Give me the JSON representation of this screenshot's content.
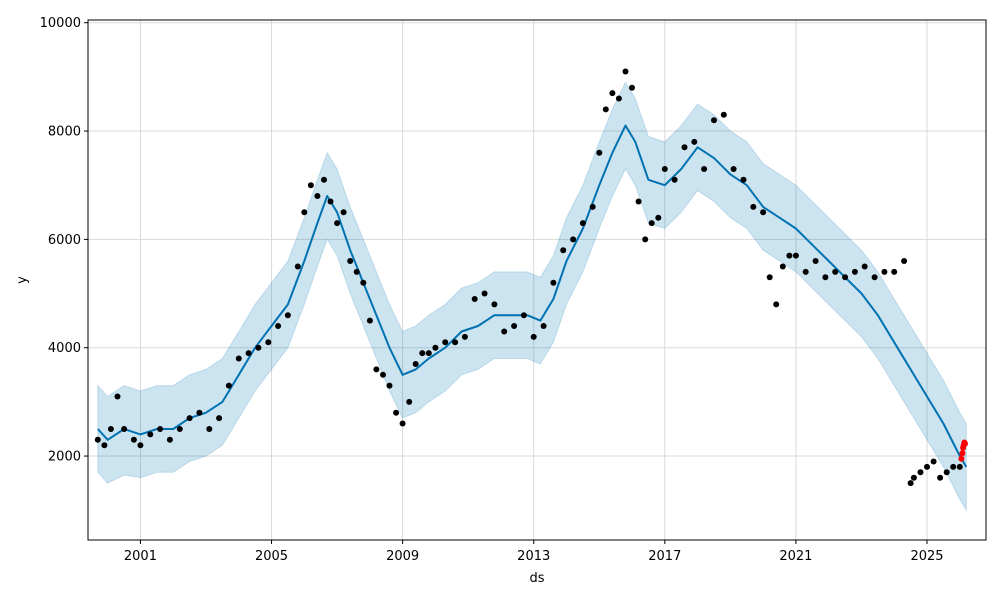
{
  "chart_data": {
    "type": "line",
    "xlabel": "ds",
    "ylabel": "y",
    "xlim": [
      1999.4,
      2026.8
    ],
    "ylim": [
      450,
      10050
    ],
    "grid": true,
    "x_ticks": [
      2001,
      2005,
      2009,
      2013,
      2017,
      2021,
      2025
    ],
    "x_tick_labels": [
      "2001",
      "2005",
      "2009",
      "2013",
      "2017",
      "2021",
      "2025"
    ],
    "y_ticks": [
      2000,
      4000,
      6000,
      8000,
      10000
    ],
    "y_tick_labels": [
      "2000",
      "4000",
      "6000",
      "8000",
      "10000"
    ],
    "colors": {
      "observed": "#000000",
      "forecast": "#0072B2",
      "interval": "#0072B2",
      "recent": "#ff0000",
      "grid": "#d9d9d9"
    },
    "series": [
      {
        "role": "observed",
        "style": "points",
        "x": [
          1999.7,
          1999.9,
          2000.1,
          2000.3,
          2000.5,
          2000.8,
          2001.0,
          2001.3,
          2001.6,
          2001.9,
          2002.2,
          2002.5,
          2002.8,
          2003.1,
          2003.4,
          2003.7,
          2004.0,
          2004.3,
          2004.6,
          2004.9,
          2005.2,
          2005.5,
          2005.8,
          2006.0,
          2006.2,
          2006.4,
          2006.6,
          2006.8,
          2007.0,
          2007.2,
          2007.4,
          2007.6,
          2007.8,
          2008.0,
          2008.2,
          2008.4,
          2008.6,
          2008.8,
          2009.0,
          2009.2,
          2009.4,
          2009.6,
          2009.8,
          2010.0,
          2010.3,
          2010.6,
          2010.9,
          2011.2,
          2011.5,
          2011.8,
          2012.1,
          2012.4,
          2012.7,
          2013.0,
          2013.3,
          2013.6,
          2013.9,
          2014.2,
          2014.5,
          2014.8,
          2015.0,
          2015.2,
          2015.4,
          2015.6,
          2015.8,
          2016.0,
          2016.2,
          2016.4,
          2016.6,
          2016.8,
          2017.0,
          2017.3,
          2017.6,
          2017.9,
          2018.2,
          2018.5,
          2018.8,
          2019.1,
          2019.4,
          2019.7,
          2020.0,
          2020.2,
          2020.4,
          2020.6,
          2020.8,
          2021.0,
          2021.3,
          2021.6,
          2021.9,
          2022.2,
          2022.5,
          2022.8,
          2023.1,
          2023.4,
          2023.7,
          2024.0,
          2024.3,
          2024.5,
          2024.6,
          2024.8,
          2025.0,
          2025.2,
          2025.4,
          2025.6,
          2025.8,
          2026.0
        ],
        "y": [
          2300,
          2200,
          2500,
          3100,
          2500,
          2300,
          2200,
          2400,
          2500,
          2300,
          2500,
          2700,
          2800,
          2500,
          2700,
          3300,
          3800,
          3900,
          4000,
          4100,
          4400,
          4600,
          5500,
          6500,
          7000,
          6800,
          7100,
          6700,
          6300,
          6500,
          5600,
          5400,
          5200,
          4500,
          3600,
          3500,
          3300,
          2800,
          2600,
          3000,
          3700,
          3900,
          3900,
          4000,
          4100,
          4100,
          4200,
          4900,
          5000,
          4800,
          4300,
          4400,
          4600,
          4200,
          4400,
          5200,
          5800,
          6000,
          6300,
          6600,
          7600,
          8400,
          8700,
          8600,
          9100,
          8800,
          6700,
          6000,
          6300,
          6400,
          7300,
          7100,
          7700,
          7800,
          7300,
          8200,
          8300,
          7300,
          7100,
          6600,
          6500,
          5300,
          4800,
          5500,
          5700,
          5700,
          5400,
          5600,
          5300,
          5400,
          5300,
          5400,
          5500,
          5300,
          5400,
          5400,
          5600,
          1500,
          1600,
          1700,
          1800,
          1900,
          1600,
          1700,
          1800,
          1800
        ]
      },
      {
        "role": "recent",
        "style": "points",
        "x": [
          2026.05,
          2026.08,
          2026.1,
          2026.12,
          2026.14,
          2026.16
        ],
        "y": [
          1950,
          2050,
          2150,
          2200,
          2250,
          2230
        ]
      },
      {
        "role": "forecast",
        "style": "line",
        "x": [
          1999.7,
          2000.0,
          2000.5,
          2001.0,
          2001.5,
          2002.0,
          2002.5,
          2003.0,
          2003.5,
          2004.0,
          2004.5,
          2005.0,
          2005.5,
          2006.0,
          2006.4,
          2006.7,
          2007.0,
          2007.4,
          2007.8,
          2008.2,
          2008.6,
          2009.0,
          2009.4,
          2009.8,
          2010.3,
          2010.8,
          2011.3,
          2011.8,
          2012.3,
          2012.8,
          2013.2,
          2013.6,
          2014.0,
          2014.5,
          2015.0,
          2015.4,
          2015.8,
          2016.1,
          2016.5,
          2017.0,
          2017.5,
          2018.0,
          2018.5,
          2019.0,
          2019.5,
          2020.0,
          2020.5,
          2021.0,
          2021.5,
          2022.0,
          2022.5,
          2023.0,
          2023.5,
          2024.0,
          2024.5,
          2025.0,
          2025.5,
          2026.0,
          2026.2
        ],
        "y": [
          2500,
          2300,
          2500,
          2400,
          2500,
          2500,
          2700,
          2800,
          3000,
          3500,
          4000,
          4400,
          4800,
          5600,
          6300,
          6800,
          6500,
          5800,
          5200,
          4600,
          4000,
          3500,
          3600,
          3800,
          4000,
          4300,
          4400,
          4600,
          4600,
          4600,
          4500,
          4900,
          5600,
          6200,
          7000,
          7600,
          8100,
          7800,
          7100,
          7000,
          7300,
          7700,
          7500,
          7200,
          7000,
          6600,
          6400,
          6200,
          5900,
          5600,
          5300,
          5000,
          4600,
          4100,
          3600,
          3100,
          2600,
          2000,
          1800
        ]
      },
      {
        "role": "interval",
        "style": "band",
        "x": [
          1999.7,
          2000.0,
          2000.5,
          2001.0,
          2001.5,
          2002.0,
          2002.5,
          2003.0,
          2003.5,
          2004.0,
          2004.5,
          2005.0,
          2005.5,
          2006.0,
          2006.4,
          2006.7,
          2007.0,
          2007.4,
          2007.8,
          2008.2,
          2008.6,
          2009.0,
          2009.4,
          2009.8,
          2010.3,
          2010.8,
          2011.3,
          2011.8,
          2012.3,
          2012.8,
          2013.2,
          2013.6,
          2014.0,
          2014.5,
          2015.0,
          2015.4,
          2015.8,
          2016.1,
          2016.5,
          2017.0,
          2017.5,
          2018.0,
          2018.5,
          2019.0,
          2019.5,
          2020.0,
          2020.5,
          2021.0,
          2021.5,
          2022.0,
          2022.5,
          2023.0,
          2023.5,
          2024.0,
          2024.5,
          2025.0,
          2025.5,
          2026.0,
          2026.2
        ],
        "lower": [
          1700,
          1500,
          1650,
          1600,
          1700,
          1700,
          1900,
          2000,
          2200,
          2700,
          3200,
          3600,
          4000,
          4800,
          5500,
          6000,
          5700,
          5000,
          4400,
          3800,
          3200,
          2700,
          2800,
          3000,
          3200,
          3500,
          3600,
          3800,
          3800,
          3800,
          3700,
          4100,
          4800,
          5400,
          6200,
          6800,
          7300,
          7000,
          6300,
          6200,
          6500,
          6900,
          6700,
          6400,
          6200,
          5800,
          5600,
          5400,
          5100,
          4800,
          4500,
          4200,
          3800,
          3300,
          2800,
          2300,
          1800,
          1200,
          1000
        ],
        "upper": [
          3300,
          3100,
          3300,
          3200,
          3300,
          3300,
          3500,
          3600,
          3800,
          4300,
          4800,
          5200,
          5600,
          6400,
          7100,
          7600,
          7300,
          6600,
          6000,
          5400,
          4800,
          4300,
          4400,
          4600,
          4800,
          5100,
          5200,
          5400,
          5400,
          5400,
          5300,
          5700,
          6400,
          7000,
          7800,
          8400,
          8900,
          8600,
          7900,
          7800,
          8100,
          8500,
          8300,
          8000,
          7800,
          7400,
          7200,
          7000,
          6700,
          6400,
          6100,
          5800,
          5400,
          4900,
          4400,
          3900,
          3400,
          2800,
          2600
        ]
      }
    ]
  }
}
